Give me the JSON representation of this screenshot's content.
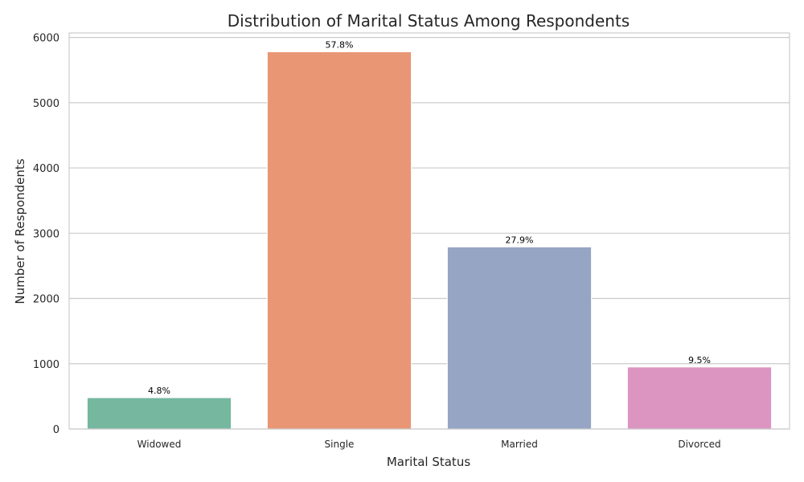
{
  "chart_data": {
    "type": "bar",
    "title": "Distribution of Marital Status Among Respondents",
    "xlabel": "Marital Status",
    "ylabel": "Number of Respondents",
    "categories": [
      "Widowed",
      "Single",
      "Married",
      "Divorced"
    ],
    "values": [
      480,
      5780,
      2790,
      950
    ],
    "data_labels": [
      "4.8%",
      "57.8%",
      "27.9%",
      "9.5%"
    ],
    "colors": [
      "#76b7a0",
      "#e99675",
      "#96a5c4",
      "#db95c0"
    ],
    "yticks": [
      0,
      1000,
      2000,
      3000,
      4000,
      5000,
      6000
    ],
    "ylim": [
      0,
      6069
    ],
    "grid": true,
    "legend": "none"
  }
}
